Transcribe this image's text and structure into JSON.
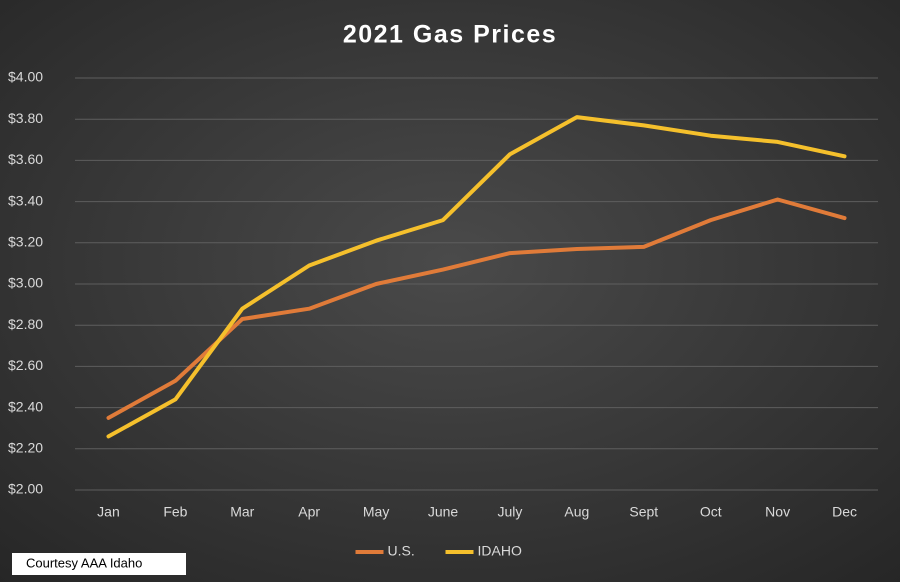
{
  "chart_data": {
    "type": "line",
    "title": "2021 Gas Prices",
    "categories": [
      "Jan",
      "Feb",
      "Mar",
      "Apr",
      "May",
      "June",
      "July",
      "Aug",
      "Sept",
      "Oct",
      "Nov",
      "Dec"
    ],
    "series": [
      {
        "name": "U.S.",
        "color": "#e07b39",
        "values": [
          2.35,
          2.53,
          2.83,
          2.88,
          3.0,
          3.07,
          3.15,
          3.17,
          3.18,
          3.31,
          3.41,
          3.32
        ]
      },
      {
        "name": "IDAHO",
        "color": "#f5c02c",
        "values": [
          2.26,
          2.44,
          2.88,
          3.09,
          3.21,
          3.31,
          3.63,
          3.81,
          3.77,
          3.72,
          3.69,
          3.62
        ]
      }
    ],
    "ylim": [
      2.0,
      4.0
    ],
    "yticks": [
      {
        "value": 2.0,
        "label": "$2.00"
      },
      {
        "value": 2.2,
        "label": "$2.20"
      },
      {
        "value": 2.4,
        "label": "$2.40"
      },
      {
        "value": 2.6,
        "label": "$2.60"
      },
      {
        "value": 2.8,
        "label": "$2.80"
      },
      {
        "value": 3.0,
        "label": "$3.00"
      },
      {
        "value": 3.2,
        "label": "$3.20"
      },
      {
        "value": 3.4,
        "label": "$3.40"
      },
      {
        "value": 3.6,
        "label": "$3.60"
      },
      {
        "value": 3.8,
        "label": "$3.80"
      },
      {
        "value": 4.0,
        "label": "$4.00"
      }
    ],
    "grid": true,
    "legend": "bottom",
    "annotation": "Courtesy AAA Idaho"
  }
}
